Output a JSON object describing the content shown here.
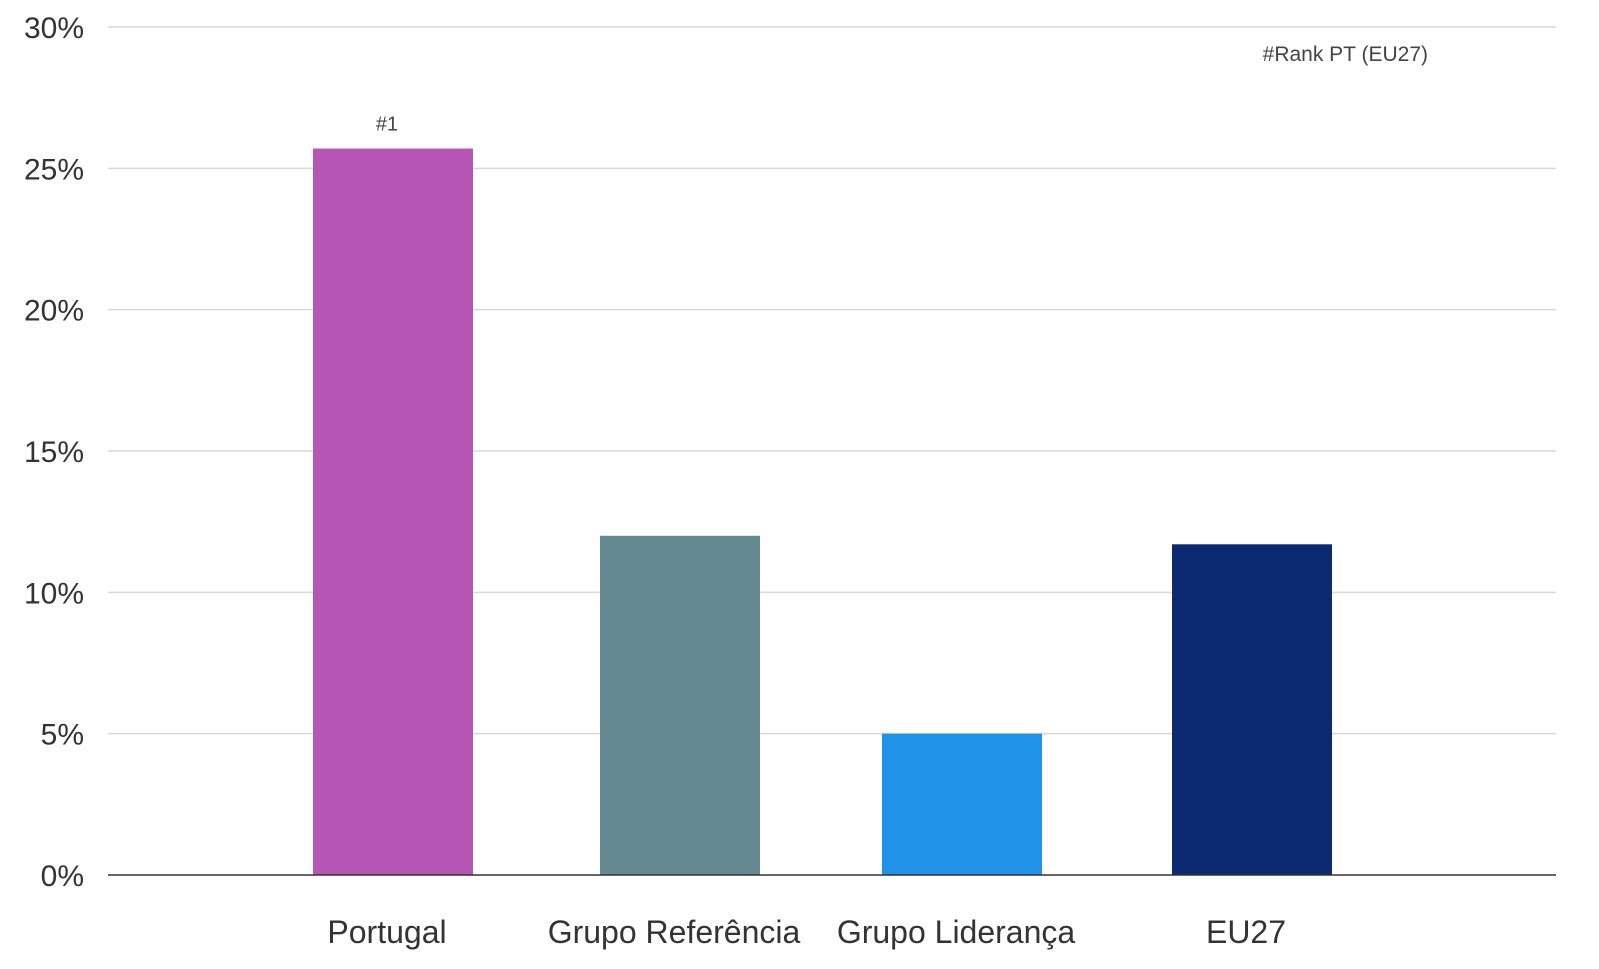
{
  "chart_data": {
    "type": "bar",
    "categories": [
      "Portugal",
      "Grupo Referência",
      "Grupo Liderança",
      "EU27"
    ],
    "values": [
      25.7,
      12.0,
      5.0,
      11.7
    ],
    "colors": [
      "#b556b5",
      "#638890",
      "#2093e8",
      "#0c2a72"
    ],
    "data_labels": [
      "#1",
      "",
      "",
      ""
    ],
    "ylim": [
      0,
      30
    ],
    "yticks": [
      0,
      5,
      10,
      15,
      20,
      25,
      30
    ],
    "ytick_labels": [
      "0%",
      "5%",
      "10%",
      "15%",
      "20%",
      "25%",
      "30%"
    ],
    "grid": true,
    "annotation": "#Rank PT (EU27)",
    "title": "",
    "xlabel": "",
    "ylabel": ""
  }
}
